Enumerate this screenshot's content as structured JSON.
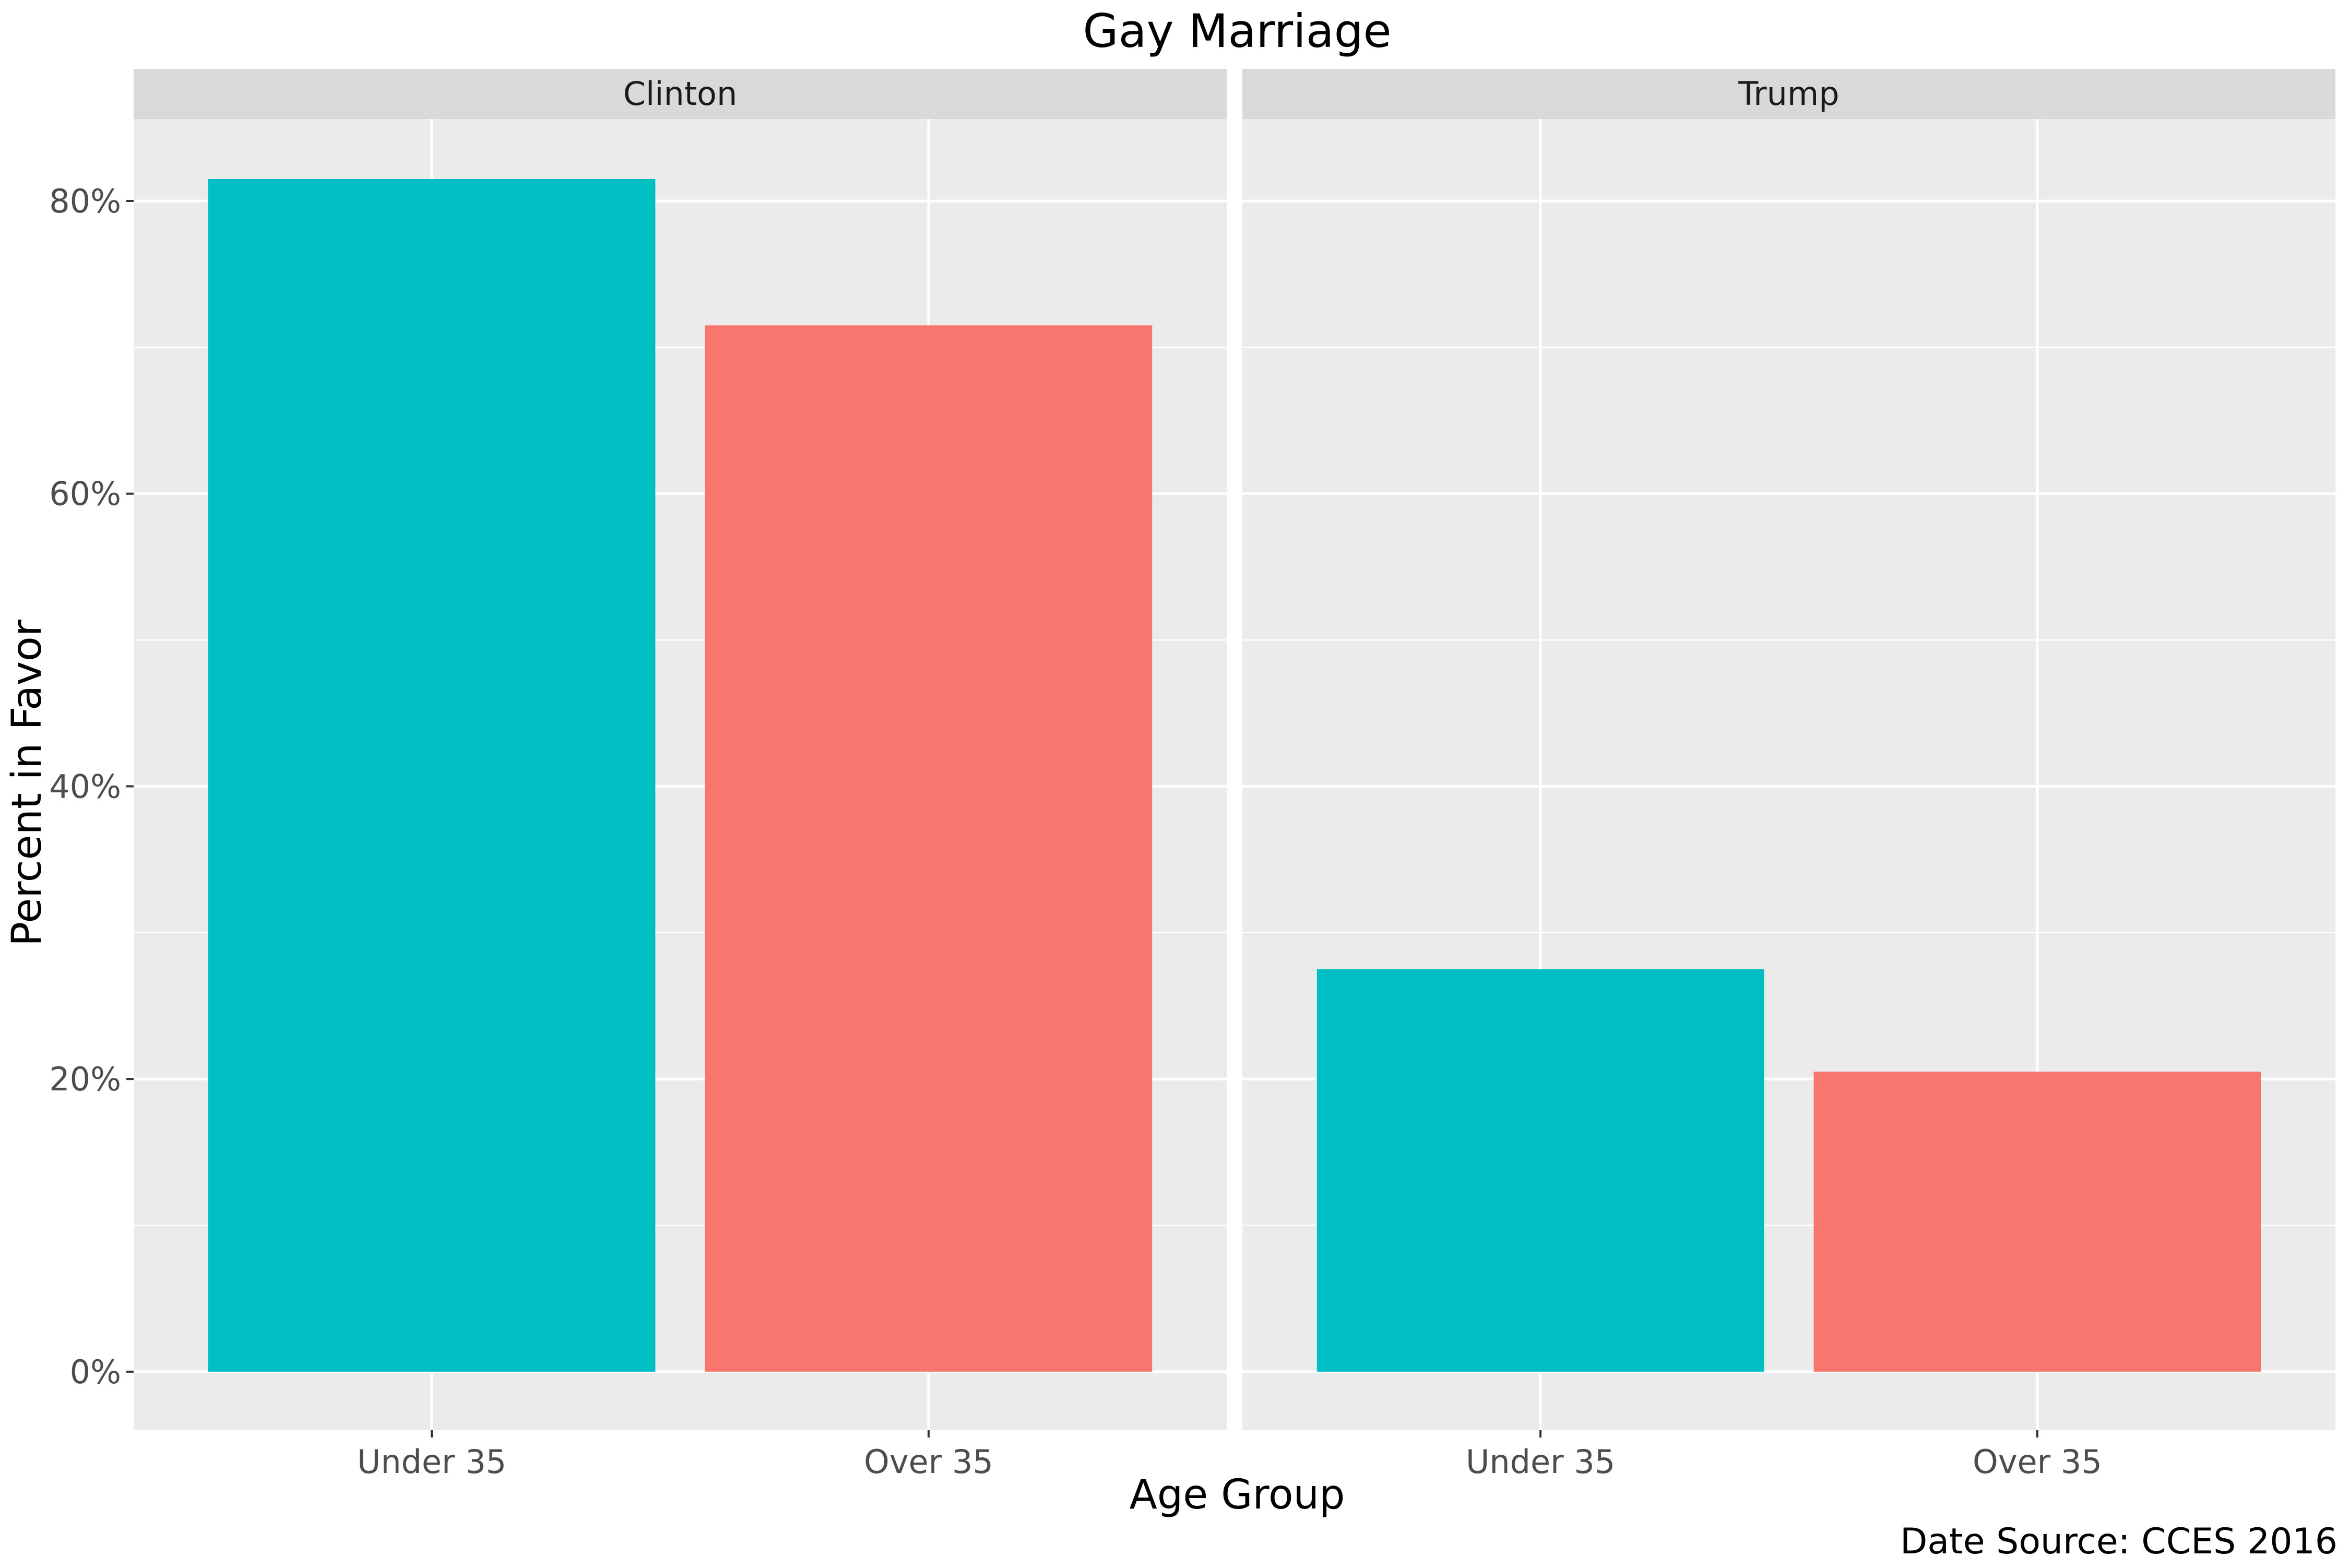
{
  "chart_data": {
    "type": "bar",
    "title": "Gay Marriage",
    "xlabel": "Age Group",
    "ylabel": "Percent in Favor",
    "caption": "Date Source: CCES 2016",
    "categories": [
      "Under 35",
      "Over 35"
    ],
    "colors": {
      "Under 35": "#00BFC4",
      "Over 35": "#F8766D"
    },
    "ylim": [
      -0.04,
      0.856
    ],
    "yticks": [
      0,
      0.2,
      0.4,
      0.6,
      0.8
    ],
    "ytick_labels": [
      "0%",
      "20%",
      "40%",
      "60%",
      "80%"
    ],
    "grid": true,
    "legend": "none",
    "panels": [
      {
        "name": "Clinton",
        "values": [
          0.815,
          0.715
        ]
      },
      {
        "name": "Trump",
        "values": [
          0.275,
          0.205
        ]
      }
    ]
  }
}
